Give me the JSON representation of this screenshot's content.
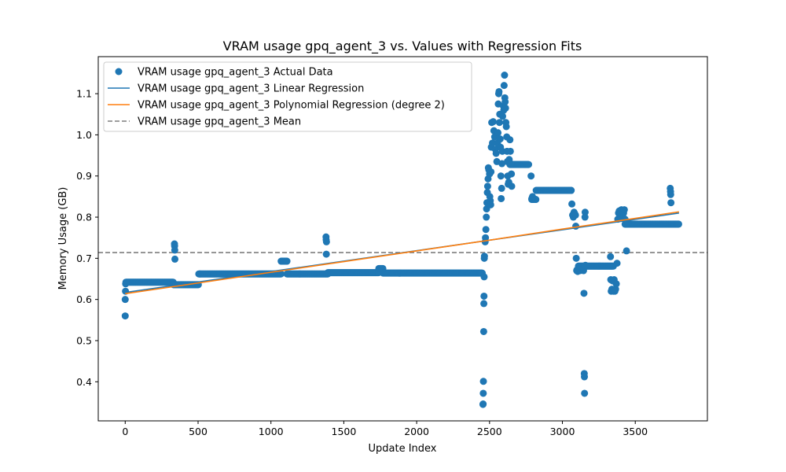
{
  "chart_data": {
    "type": "scatter",
    "title": "VRAM usage gpq_agent_3 vs. Values with Regression Fits",
    "xlabel": "Update Index",
    "ylabel": "Memory Usage (GB)",
    "xlim": [
      -185,
      3995
    ],
    "ylim": [
      0.305,
      1.19
    ],
    "xticks": [
      0,
      500,
      1000,
      1500,
      2000,
      2500,
      3000,
      3500
    ],
    "yticks": [
      0.4,
      0.5,
      0.6,
      0.7,
      0.8,
      0.9,
      1.0,
      1.1
    ],
    "xtick_labels": [
      "0",
      "500",
      "1000",
      "1500",
      "2000",
      "2500",
      "3000",
      "3500"
    ],
    "ytick_labels": [
      "0.4",
      "0.5",
      "0.6",
      "0.7",
      "0.8",
      "0.9",
      "1.0",
      "1.1"
    ],
    "grid": false,
    "legend_position": "upper-left",
    "colors": {
      "actual": "#1f77b4",
      "linear": "#1f77b4",
      "poly": "#ff7f0e",
      "mean": "#7f7f7f"
    },
    "series": [
      {
        "name": "VRAM usage gpq_agent_3 Actual Data",
        "kind": "scatter",
        "segments": [
          {
            "x_start": 5,
            "x_end": 330,
            "y": 0.642
          },
          {
            "x_start": 330,
            "x_end": 505,
            "y": 0.636
          },
          {
            "x_start": 505,
            "x_end": 1070,
            "y": 0.662
          },
          {
            "x_start": 1070,
            "x_end": 1110,
            "y": 0.693
          },
          {
            "x_start": 1110,
            "x_end": 1390,
            "y": 0.662
          },
          {
            "x_start": 1390,
            "x_end": 1740,
            "y": 0.665
          },
          {
            "x_start": 1740,
            "x_end": 1770,
            "y": 0.675
          },
          {
            "x_start": 1770,
            "x_end": 2450,
            "y": 0.664
          },
          {
            "x_start": 2640,
            "x_end": 2770,
            "y": 0.928
          },
          {
            "x_start": 2790,
            "x_end": 2820,
            "y": 0.843
          },
          {
            "x_start": 2820,
            "x_end": 3060,
            "y": 0.865
          },
          {
            "x_start": 3110,
            "x_end": 3350,
            "y": 0.681
          },
          {
            "x_start": 3430,
            "x_end": 3800,
            "y": 0.783
          }
        ],
        "points": [
          [
            0,
            0.56
          ],
          [
            0,
            0.6
          ],
          [
            2,
            0.62
          ],
          [
            3,
            0.638
          ],
          [
            6,
            0.641
          ],
          [
            338,
            0.735
          ],
          [
            339,
            0.73
          ],
          [
            340,
            0.72
          ],
          [
            341,
            0.698
          ],
          [
            1378,
            0.752
          ],
          [
            1379,
            0.745
          ],
          [
            1380,
            0.71
          ],
          [
            1381,
            0.74
          ],
          [
            2455,
            0.345
          ],
          [
            2456,
            0.346
          ],
          [
            2457,
            0.372
          ],
          [
            2458,
            0.401
          ],
          [
            2460,
            0.522
          ],
          [
            2461,
            0.59
          ],
          [
            2462,
            0.608
          ],
          [
            2463,
            0.655
          ],
          [
            2464,
            0.7
          ],
          [
            2465,
            0.705
          ],
          [
            2470,
            0.74
          ],
          [
            2472,
            0.75
          ],
          [
            2475,
            0.77
          ],
          [
            2478,
            0.8
          ],
          [
            2480,
            0.82
          ],
          [
            2482,
            0.835
          ],
          [
            2485,
            0.86
          ],
          [
            2487,
            0.875
          ],
          [
            2490,
            0.893
          ],
          [
            2492,
            0.92
          ],
          [
            2495,
            0.915
          ],
          [
            2500,
            0.905
          ],
          [
            2502,
            0.85
          ],
          [
            2505,
            0.84
          ],
          [
            2508,
            0.83
          ],
          [
            2510,
            0.91
          ],
          [
            2512,
            0.97
          ],
          [
            2515,
            1.03
          ],
          [
            2520,
            0.98
          ],
          [
            2525,
            1.032
          ],
          [
            2530,
            1.01
          ],
          [
            2535,
            0.995
          ],
          [
            2540,
            0.965
          ],
          [
            2545,
            0.955
          ],
          [
            2550,
            0.935
          ],
          [
            2555,
            0.98
          ],
          [
            2558,
            1.005
          ],
          [
            2560,
            1.075
          ],
          [
            2563,
            1.1
          ],
          [
            2565,
            1.105
          ],
          [
            2568,
            1.03
          ],
          [
            2570,
            1.05
          ],
          [
            2573,
            0.99
          ],
          [
            2575,
            0.97
          ],
          [
            2578,
            0.9
          ],
          [
            2580,
            0.845
          ],
          [
            2583,
            0.87
          ],
          [
            2585,
            0.93
          ],
          [
            2588,
            0.96
          ],
          [
            2590,
            1.045
          ],
          [
            2595,
            1.07
          ],
          [
            2598,
            1.06
          ],
          [
            2600,
            1.12
          ],
          [
            2603,
            1.145
          ],
          [
            2605,
            1.09
          ],
          [
            2607,
            1.08
          ],
          [
            2610,
            1.065
          ],
          [
            2612,
            1.03
          ],
          [
            2615,
            1.02
          ],
          [
            2618,
            0.995
          ],
          [
            2620,
            0.96
          ],
          [
            2622,
            0.935
          ],
          [
            2625,
            0.9
          ],
          [
            2628,
            0.88
          ],
          [
            2632,
            0.885
          ],
          [
            2635,
            0.94
          ],
          [
            2640,
            0.988
          ],
          [
            2643,
            0.96
          ],
          [
            2646,
            0.93
          ],
          [
            2650,
            0.905
          ],
          [
            2652,
            0.875
          ],
          [
            2785,
            0.9
          ],
          [
            2790,
            0.845
          ],
          [
            2795,
            0.85
          ],
          [
            3060,
            0.865
          ],
          [
            3065,
            0.832
          ],
          [
            3070,
            0.805
          ],
          [
            3075,
            0.8
          ],
          [
            3080,
            0.812
          ],
          [
            3085,
            0.808
          ],
          [
            3090,
            0.805
          ],
          [
            3092,
            0.778
          ],
          [
            3095,
            0.7
          ],
          [
            3098,
            0.67
          ],
          [
            3100,
            0.672
          ],
          [
            3105,
            0.668
          ],
          [
            3110,
            0.67
          ],
          [
            3120,
            0.67
          ],
          [
            3145,
            0.67
          ],
          [
            3148,
            0.615
          ],
          [
            3150,
            0.42
          ],
          [
            3151,
            0.412
          ],
          [
            3152,
            0.372
          ],
          [
            3155,
            0.8
          ],
          [
            3156,
            0.812
          ],
          [
            3158,
            0.683
          ],
          [
            3330,
            0.704
          ],
          [
            3332,
            0.648
          ],
          [
            3335,
            0.62
          ],
          [
            3340,
            0.625
          ],
          [
            3345,
            0.645
          ],
          [
            3350,
            0.62
          ],
          [
            3355,
            0.648
          ],
          [
            3360,
            0.62
          ],
          [
            3365,
            0.625
          ],
          [
            3370,
            0.638
          ],
          [
            3375,
            0.688
          ],
          [
            3380,
            0.795
          ],
          [
            3385,
            0.81
          ],
          [
            3390,
            0.815
          ],
          [
            3395,
            0.805
          ],
          [
            3400,
            0.81
          ],
          [
            3405,
            0.818
          ],
          [
            3410,
            0.815
          ],
          [
            3415,
            0.8
          ],
          [
            3420,
            0.81
          ],
          [
            3425,
            0.818
          ],
          [
            3430,
            0.795
          ],
          [
            3435,
            0.783
          ],
          [
            3440,
            0.718
          ],
          [
            3740,
            0.87
          ],
          [
            3742,
            0.862
          ],
          [
            3743,
            0.855
          ],
          [
            3745,
            0.835
          ]
        ]
      },
      {
        "name": "VRAM usage gpq_agent_3 Linear Regression",
        "kind": "line",
        "x": [
          0,
          3800
        ],
        "y": [
          0.617,
          0.81
        ]
      },
      {
        "name": "VRAM usage gpq_agent_3 Polynomial Regression (degree 2)",
        "kind": "line",
        "x": [
          0,
          500,
          1000,
          1500,
          2000,
          2500,
          3000,
          3500,
          3800
        ],
        "y": [
          0.614,
          0.64,
          0.666,
          0.692,
          0.718,
          0.744,
          0.771,
          0.797,
          0.813
        ]
      },
      {
        "name": "VRAM usage gpq_agent_3 Mean",
        "kind": "hline",
        "y": 0.714
      }
    ]
  }
}
